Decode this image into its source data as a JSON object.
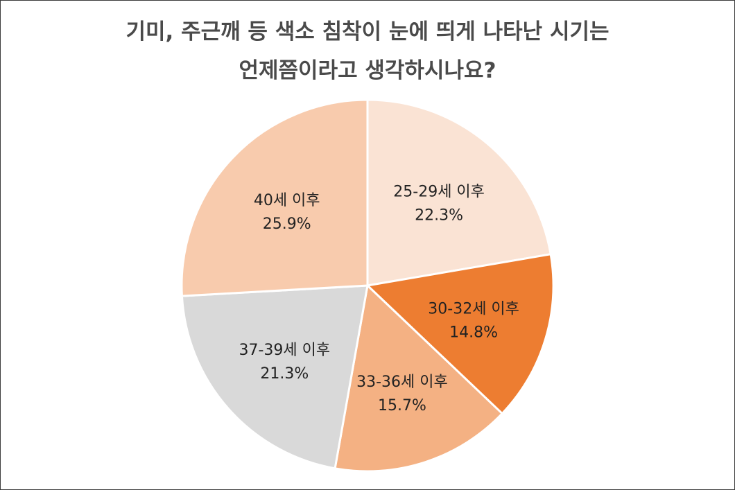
{
  "chart_data": {
    "type": "pie",
    "title_lines": [
      "기미, 주근깨 등 색소 침착이 눈에 띄게 나타난 시기는",
      "언제쯤이라고 생각하시나요?"
    ],
    "slices": [
      {
        "label": "25-29세 이후",
        "value": 22.3,
        "value_label": "22.3%",
        "color": "#fae3d4"
      },
      {
        "label": "30-32세 이후",
        "value": 14.8,
        "value_label": "14.8%",
        "color": "#ed7d31"
      },
      {
        "label": "33-36세 이후",
        "value": 15.7,
        "value_label": "15.7%",
        "color": "#f4b183"
      },
      {
        "label": "37-39세 이후",
        "value": 21.3,
        "value_label": "21.3%",
        "color": "#d9d9d9"
      },
      {
        "label": "40세 이후",
        "value": 25.9,
        "value_label": "25.9%",
        "color": "#f8cbad"
      }
    ],
    "start_angle": "12 o'clock",
    "direction": "clockwise",
    "legend": "none"
  }
}
